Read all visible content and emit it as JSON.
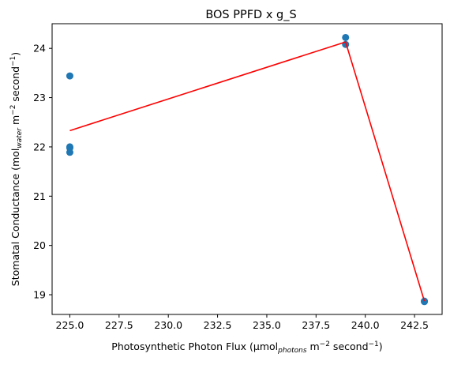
{
  "chart_data": {
    "type": "scatter",
    "title": "BOS PPFD x g_S",
    "xlabel": {
      "prefix": "Photosynthetic Photon Flux (µmol",
      "subscript": "photons",
      "middle": " m",
      "superscript1": "−2",
      "middle2": " second",
      "superscript2": "−1",
      "suffix": ")"
    },
    "ylabel": {
      "prefix": "Stomatal Conductance (mol",
      "subscript": "water",
      "middle": " m",
      "superscript1": "−2",
      "middle2": " second",
      "superscript2": "−1",
      "suffix": ")"
    },
    "xlim": [
      224.1,
      243.9
    ],
    "ylim": [
      18.6,
      24.5
    ],
    "xticks": [
      225.0,
      227.5,
      230.0,
      232.5,
      235.0,
      237.5,
      240.0,
      242.5
    ],
    "xtick_labels": [
      "225.0",
      "227.5",
      "230.0",
      "232.5",
      "235.0",
      "237.5",
      "240.0",
      "242.5"
    ],
    "yticks": [
      19,
      20,
      21,
      22,
      23,
      24
    ],
    "ytick_labels": [
      "19",
      "20",
      "21",
      "22",
      "23",
      "24"
    ],
    "series": [
      {
        "name": "observations",
        "kind": "scatter",
        "color": "#1f77b4",
        "x": [
          225,
          225,
          225,
          225,
          239,
          239,
          243,
          243
        ],
        "y": [
          23.44,
          22.0,
          21.98,
          21.89,
          24.22,
          24.08,
          18.87,
          18.86
        ]
      },
      {
        "name": "fit",
        "kind": "line",
        "color": "#ff0000",
        "x": [
          225,
          239,
          243
        ],
        "y": [
          22.33,
          24.13,
          18.87
        ]
      }
    ]
  }
}
